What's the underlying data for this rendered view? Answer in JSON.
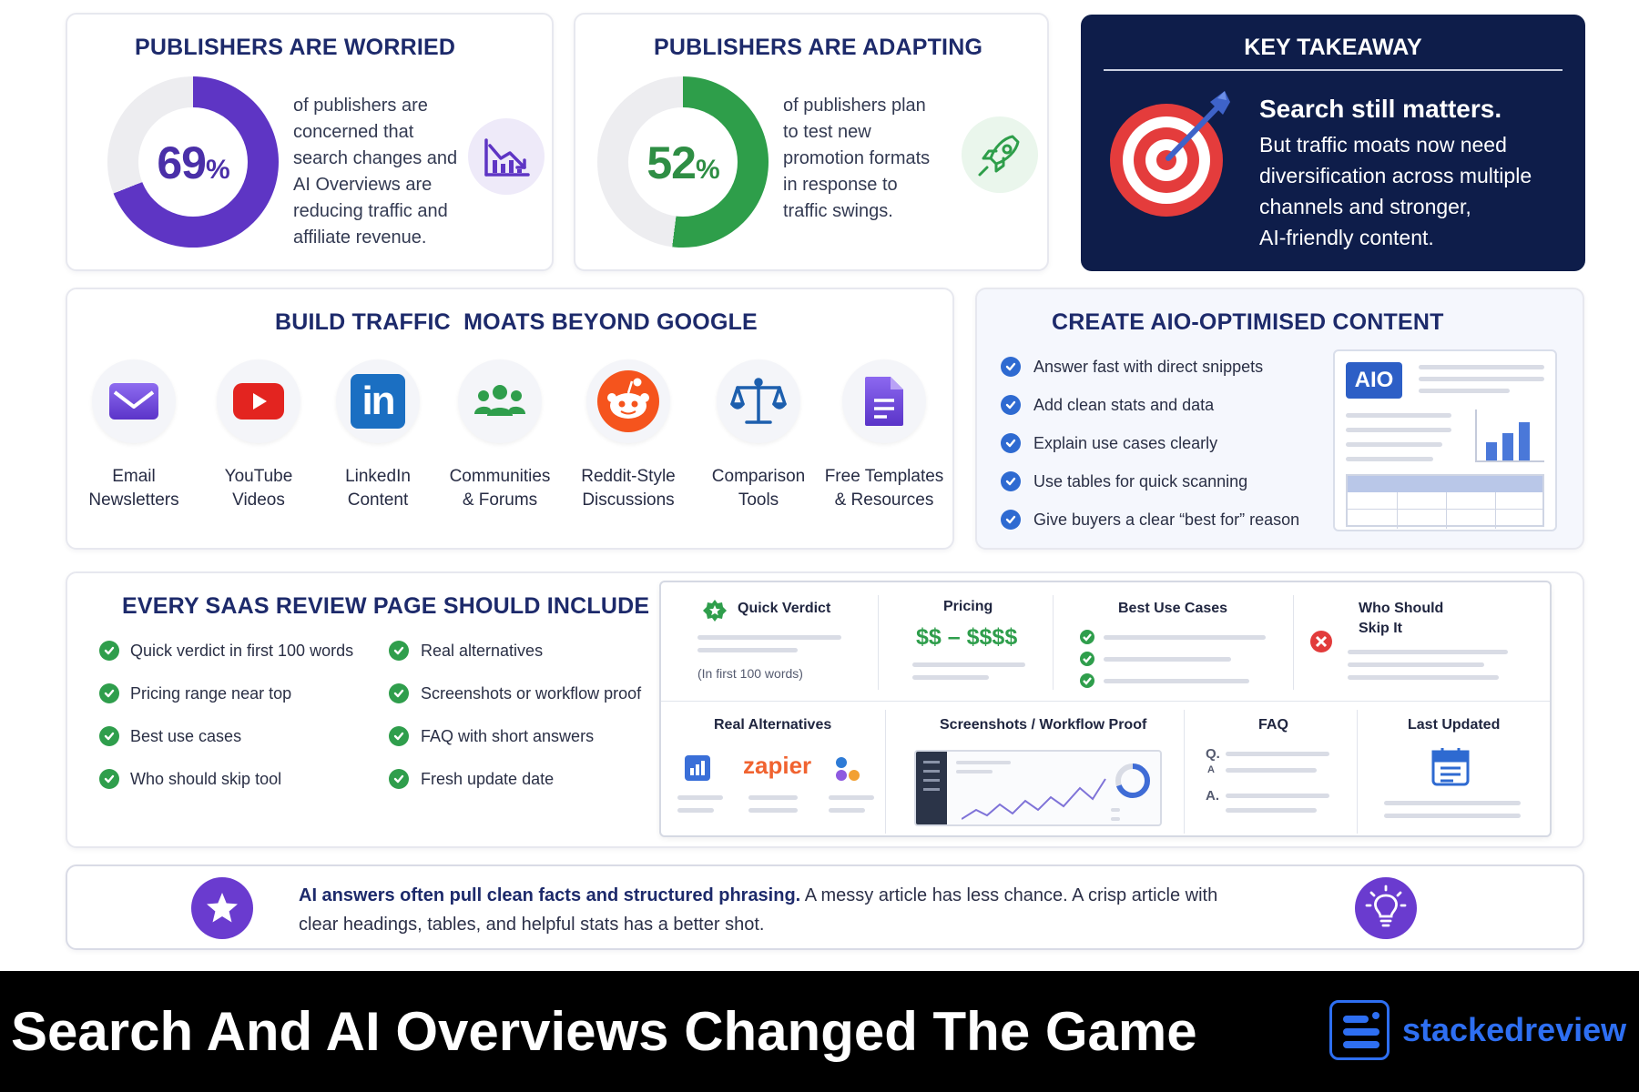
{
  "colors": {
    "navy": "#0e1d4a",
    "title_blue": "#1d2a6b",
    "purple": "#5e35c4",
    "green": "#2e9e4a",
    "check_blue": "#2e6ad1",
    "check_green": "#2f9e4c",
    "red": "#e23b3b"
  },
  "worried": {
    "title": "PUBLISHERS ARE WORRIED",
    "percent": "69",
    "percent_symbol": "%",
    "percent_value": 69,
    "lines": [
      "of publishers are",
      "concerned that",
      "search changes and",
      "AI Overviews are",
      "reducing traffic and",
      "affiliate revenue."
    ],
    "icon": "declining-chart-icon"
  },
  "adapting": {
    "title": "PUBLISHERS ARE ADAPTING",
    "percent": "52",
    "percent_symbol": "%",
    "percent_value": 52,
    "lines": [
      "of publishers plan",
      "to test new",
      "promotion formats",
      "in response to",
      "traffic swings."
    ],
    "icon": "rocket-icon"
  },
  "takeaway": {
    "title": "KEY TAKEAWAY",
    "headline": "Search still matters.",
    "lines": [
      "But traffic moats now need",
      "diversification across multiple",
      "channels and stronger,",
      "AI-friendly content."
    ],
    "icon": "target-icon"
  },
  "moats": {
    "title": "BUILD TRAFFIC  MOATS BEYOND GOOGLE",
    "items": [
      {
        "line1": "Email",
        "line2": "Newsletters",
        "icon": "email-icon"
      },
      {
        "line1": "YouTube",
        "line2": "Videos",
        "icon": "youtube-icon"
      },
      {
        "line1": "LinkedIn",
        "line2": "Content",
        "icon": "linkedin-icon",
        "icon_text": "in"
      },
      {
        "line1": "Communities",
        "line2": "& Forums",
        "icon": "people-icon"
      },
      {
        "line1": "Reddit-Style",
        "line2": "Discussions",
        "icon": "reddit-icon"
      },
      {
        "line1": "Comparison",
        "line2": "Tools",
        "icon": "scales-icon"
      },
      {
        "line1": "Free Templates",
        "line2": "& Resources",
        "icon": "document-icon"
      }
    ]
  },
  "aio": {
    "title": "CREATE AIO-OPTIMISED CONTENT",
    "items": [
      "Answer fast with direct snippets",
      "Add clean stats and data",
      "Explain use cases clearly",
      "Use tables for quick scanning",
      "Give buyers a clear “best for” reason"
    ],
    "badge": "AIO"
  },
  "saas": {
    "title": "EVERY SAAS REVIEW PAGE SHOULD INCLUDE",
    "col1": [
      "Quick verdict in first 100 words",
      "Pricing range near top",
      "Best use cases",
      "Who should skip tool"
    ],
    "col2": [
      "Real alternatives",
      "Screenshots or workflow proof",
      "FAQ with short answers",
      "Fresh update date"
    ]
  },
  "mock": {
    "quick_verdict": "Quick Verdict",
    "quick_verdict_note": "(In first 100 words)",
    "pricing": "Pricing",
    "pricing_range": "$$ – $$$$",
    "best_use_cases": "Best Use Cases",
    "who_should_skip_1": "Who Should",
    "who_should_skip_2": "Skip It",
    "real_alternatives": "Real Alternatives",
    "zapier": "zapier",
    "screenshots": "Screenshots / Workflow Proof",
    "faq": "FAQ",
    "faq_q": "Q.",
    "faq_a_small": "A",
    "faq_a": "A.",
    "last_updated": "Last Updated"
  },
  "banner": {
    "bold": "AI answers often pull clean facts and structured phrasing.",
    "rest1": " A messy article has less chance. A crisp article with",
    "rest2": "clear headings, tables, and helpful stats has a better shot.",
    "left_icon": "star-icon",
    "right_icon": "lightbulb-icon"
  },
  "footer": {
    "headline": "Search And AI Overviews Changed The Game",
    "brand": "stackedreview",
    "logo_icon": "stackedreview-logo-icon"
  }
}
